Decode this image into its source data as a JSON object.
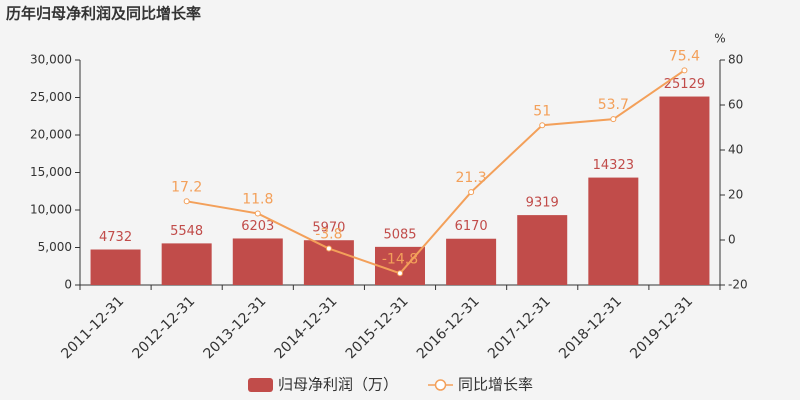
{
  "chart_data": {
    "type": "combo",
    "title": "历年归母净利润及同比增长率",
    "categories": [
      "2011-12-31",
      "2012-12-31",
      "2013-12-31",
      "2014-12-31",
      "2015-12-31",
      "2016-12-31",
      "2017-12-31",
      "2018-12-31",
      "2019-12-31"
    ],
    "series": [
      {
        "name": "归母净利润（万）",
        "type": "bar",
        "color": "#c14c4a",
        "values": [
          4732,
          5548,
          6203,
          5970,
          5085,
          6170,
          9319,
          14323,
          25129
        ]
      },
      {
        "name": "同比增长率",
        "type": "line",
        "axis": "y2",
        "color": "#f3a05a",
        "values": [
          null,
          17.2,
          11.8,
          -3.8,
          -14.8,
          21.3,
          51,
          53.7,
          75.4
        ]
      }
    ],
    "ylim": [
      0,
      30000
    ],
    "yticks": [
      0,
      {
        "value": 5000,
        "label": "5,000"
      },
      {
        "value": 10000,
        "label": "10,000"
      },
      {
        "value": 15000,
        "label": "15,000"
      },
      {
        "value": 20000,
        "label": "20,000"
      },
      {
        "value": 25000,
        "label": "25,000"
      },
      {
        "value": 30000,
        "label": "30,000"
      }
    ],
    "y2lim": [
      -20,
      80
    ],
    "y2ticks": [
      -20,
      0,
      20,
      40,
      60,
      80
    ],
    "y2_unit": "%",
    "grid": false,
    "legend": "bottom"
  }
}
